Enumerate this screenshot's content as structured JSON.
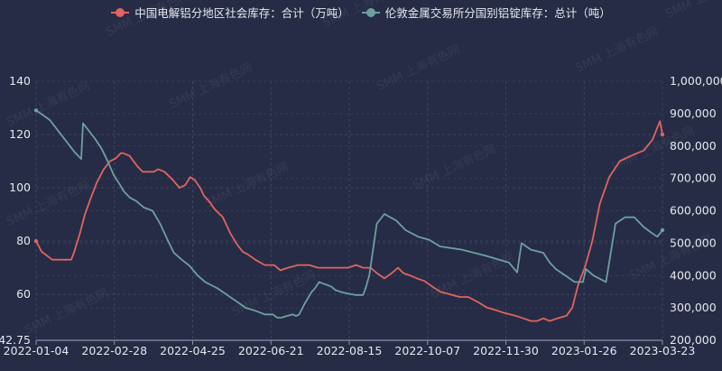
{
  "legend": [
    {
      "label": "中国电解铝分地区社会库存：合计（万吨）",
      "color": "#e06461"
    },
    {
      "label": "伦敦金属交易所分国别铝锭库存：总计（吨）",
      "color": "#6e9fa0"
    }
  ],
  "watermark": "SMM 上海有色网",
  "chart_data": {
    "type": "line",
    "title": "",
    "x_ticks": [
      "2022-01-04",
      "2022-02-28",
      "2022-04-25",
      "2022-06-21",
      "2022-08-15",
      "2022-10-07",
      "2022-11-30",
      "2023-01-26",
      "2023-03-23"
    ],
    "y_left": {
      "ticks": [
        "140",
        "120",
        "100",
        "80",
        "60",
        "42.75"
      ],
      "min": 42.75,
      "max": 140,
      "label": "万吨"
    },
    "y_right": {
      "ticks": [
        "1,000,000",
        "900,000",
        "800,000",
        "700,000",
        "600,000",
        "500,000",
        "400,000",
        "300,000",
        "200,000"
      ],
      "min": 200000,
      "max": 1000000,
      "label": "吨"
    },
    "grid": true,
    "legend_position": "top",
    "series": [
      {
        "name": "中国电解铝分地区社会库存：合计（万吨）",
        "axis": "left",
        "color": "#e06461",
        "x_frac": [
          0,
          0.009,
          0.026,
          0.035,
          0.043,
          0.056,
          0.061,
          0.07,
          0.078,
          0.087,
          0.097,
          0.108,
          0.118,
          0.127,
          0.135,
          0.139,
          0.149,
          0.162,
          0.17,
          0.18,
          0.188,
          0.195,
          0.205,
          0.218,
          0.229,
          0.238,
          0.246,
          0.253,
          0.262,
          0.268,
          0.276,
          0.285,
          0.298,
          0.31,
          0.32,
          0.33,
          0.338,
          0.35,
          0.365,
          0.38,
          0.39,
          0.402,
          0.418,
          0.436,
          0.45,
          0.466,
          0.476,
          0.486,
          0.498,
          0.511,
          0.522,
          0.534,
          0.544,
          0.556,
          0.568,
          0.578,
          0.586,
          0.598,
          0.608,
          0.62,
          0.632,
          0.645,
          0.661,
          0.676,
          0.69,
          0.706,
          0.72,
          0.735,
          0.748,
          0.765,
          0.778,
          0.79,
          0.8,
          0.81,
          0.82,
          0.832,
          0.847,
          0.856,
          0.866,
          0.876,
          0.888,
          0.9,
          0.915,
          0.932,
          0.95,
          0.97,
          0.984,
          0.996,
          1.0
        ],
        "values": [
          80,
          76,
          73,
          73,
          73,
          73,
          76,
          83,
          90,
          96,
          102,
          107,
          110,
          111,
          113,
          113,
          112,
          108,
          106,
          106,
          106,
          107,
          106,
          103,
          100,
          101,
          104,
          103,
          100,
          97,
          95,
          92,
          89,
          83,
          79,
          76,
          75,
          73,
          71,
          71,
          69,
          70,
          71,
          71,
          70,
          70,
          70,
          70,
          70,
          71,
          70,
          70,
          68,
          66,
          68,
          70,
          68,
          67,
          66,
          65,
          63,
          61,
          60,
          59,
          59,
          57,
          55,
          54,
          53,
          52,
          51,
          50,
          50,
          51,
          50,
          51,
          52,
          55,
          64,
          70,
          80,
          94,
          104,
          110,
          112,
          114,
          118,
          125,
          120
        ]
      },
      {
        "name": "伦敦金属交易所分国别铝锭库存：总计（吨）",
        "axis": "right",
        "color": "#6e9fa0",
        "x_frac": [
          0,
          0.015,
          0.022,
          0.03,
          0.038,
          0.05,
          0.062,
          0.072,
          0.075,
          0.083,
          0.087,
          0.095,
          0.105,
          0.115,
          0.124,
          0.134,
          0.14,
          0.15,
          0.16,
          0.172,
          0.186,
          0.198,
          0.21,
          0.22,
          0.232,
          0.245,
          0.258,
          0.27,
          0.28,
          0.29,
          0.305,
          0.32,
          0.335,
          0.352,
          0.365,
          0.378,
          0.385,
          0.392,
          0.4,
          0.41,
          0.415,
          0.42,
          0.428,
          0.44,
          0.445,
          0.452,
          0.458,
          0.466,
          0.472,
          0.478,
          0.486,
          0.496,
          0.51,
          0.522,
          0.526,
          0.532,
          0.544,
          0.55,
          0.556,
          0.575,
          0.59,
          0.61,
          0.628,
          0.645,
          0.68,
          0.72,
          0.755,
          0.768,
          0.775,
          0.79,
          0.81,
          0.82,
          0.83,
          0.845,
          0.86,
          0.873,
          0.878,
          0.89,
          0.9,
          0.91,
          0.925,
          0.94,
          0.955,
          0.97,
          0.984,
          0.992,
          1.0
        ],
        "values": [
          910000,
          890000,
          880000,
          860000,
          840000,
          810000,
          780000,
          760000,
          870000,
          850000,
          840000,
          820000,
          790000,
          750000,
          710000,
          680000,
          660000,
          640000,
          630000,
          610000,
          600000,
          560000,
          510000,
          470000,
          450000,
          430000,
          400000,
          380000,
          370000,
          360000,
          340000,
          320000,
          300000,
          290000,
          280000,
          280000,
          270000,
          270000,
          275000,
          280000,
          275000,
          280000,
          310000,
          350000,
          360000,
          380000,
          375000,
          370000,
          365000,
          355000,
          350000,
          345000,
          340000,
          340000,
          360000,
          400000,
          560000,
          575000,
          590000,
          570000,
          540000,
          520000,
          510000,
          490000,
          480000,
          460000,
          440000,
          410000,
          500000,
          480000,
          470000,
          440000,
          420000,
          400000,
          380000,
          380000,
          420000,
          400000,
          390000,
          380000,
          560000,
          580000,
          580000,
          550000,
          530000,
          520000,
          540000
        ]
      }
    ]
  }
}
